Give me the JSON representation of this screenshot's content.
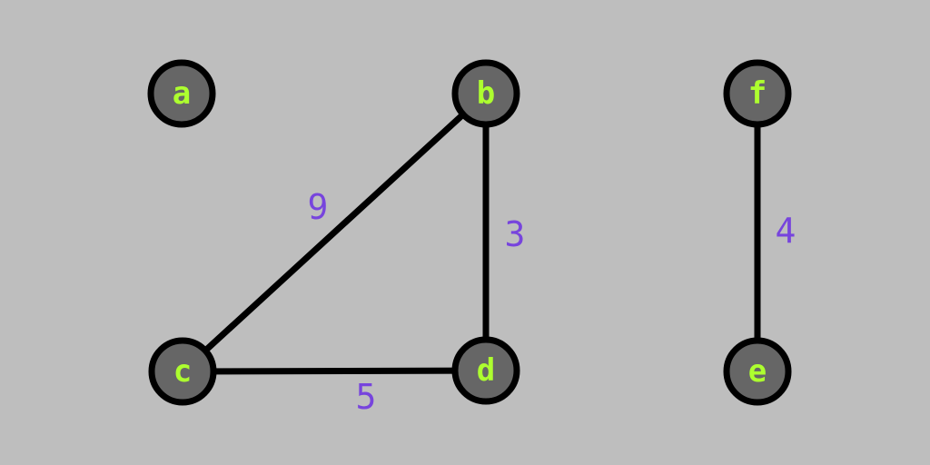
{
  "colors": {
    "background": "#bebebe",
    "node_fill": "#666666",
    "node_stroke": "#000000",
    "node_label": "#adff2f",
    "edge": "#000000",
    "weight_label": "#7744dd"
  },
  "graph": {
    "nodes": [
      {
        "id": "a",
        "label": "a"
      },
      {
        "id": "b",
        "label": "b"
      },
      {
        "id": "c",
        "label": "c"
      },
      {
        "id": "d",
        "label": "d"
      },
      {
        "id": "e",
        "label": "e"
      },
      {
        "id": "f",
        "label": "f"
      }
    ],
    "edges": [
      {
        "source": "b",
        "target": "c",
        "weight": "9"
      },
      {
        "source": "b",
        "target": "d",
        "weight": "3"
      },
      {
        "source": "c",
        "target": "d",
        "weight": "5"
      },
      {
        "source": "f",
        "target": "e",
        "weight": "4"
      }
    ]
  }
}
